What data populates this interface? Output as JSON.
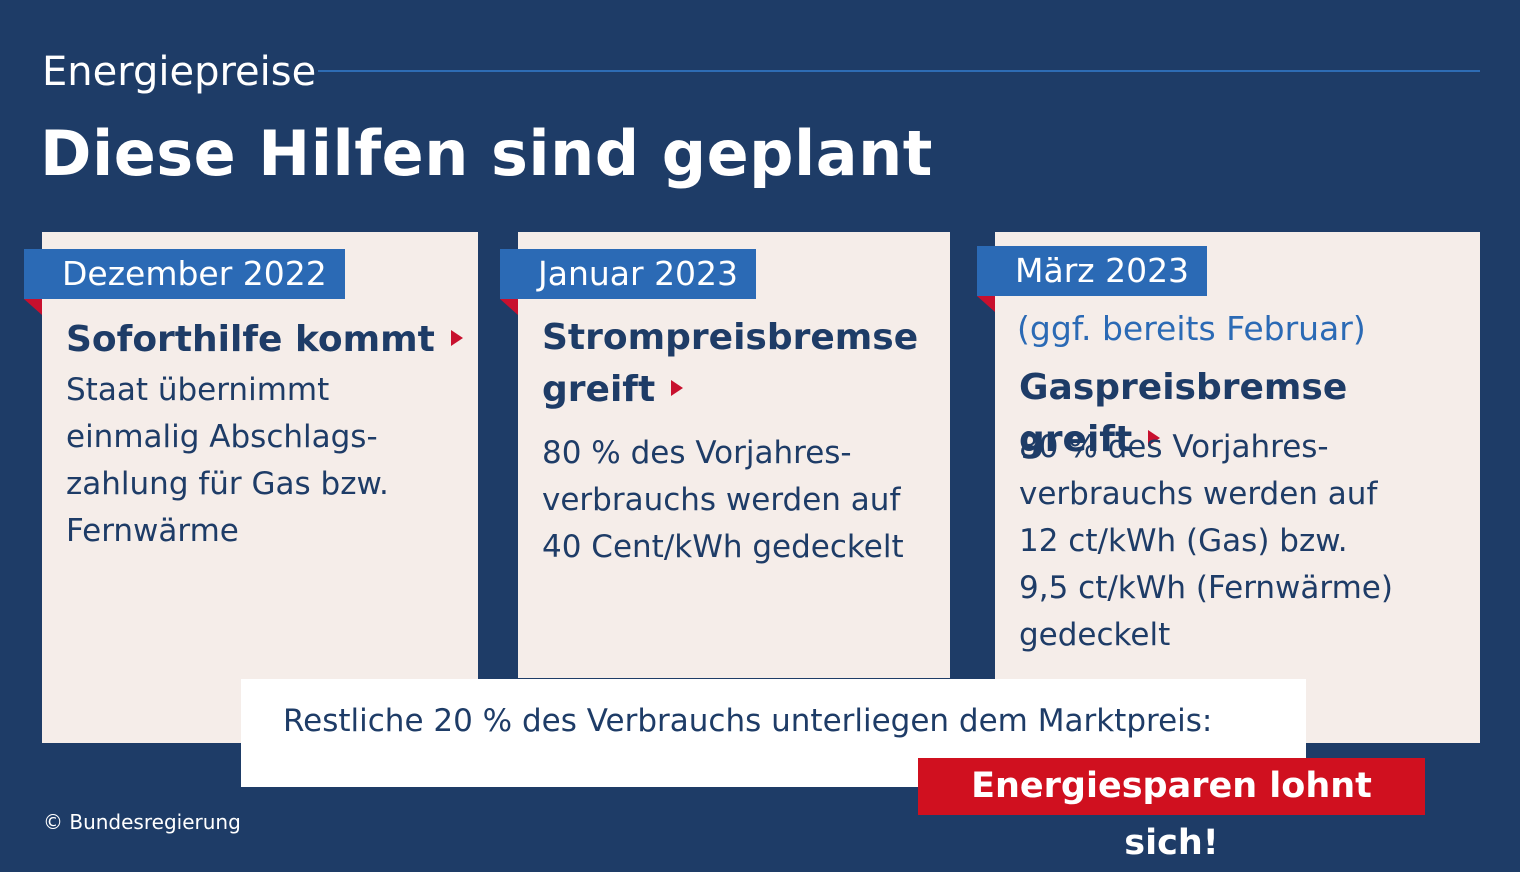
{
  "header": {
    "kicker": "Energiepreise",
    "headline": "Diese Hilfen sind geplant"
  },
  "cards": [
    {
      "date": "Dezember 2022",
      "title": "Soforthilfe kommt",
      "body": "Staat übernimmt\neinmalig Abschlags-\nzahlung für Gas bzw.\nFernwärme"
    },
    {
      "date": "Januar 2023",
      "title_line1": "Strompreisbremse",
      "title_line2": "greift",
      "body": "80 % des Vorjahres-\nverbrauchs werden auf\n40 Cent/kWh gedeckelt"
    },
    {
      "date": "März 2023",
      "note": "(ggf. bereits Februar)",
      "title": "Gaspreisbremse greift",
      "body": "80 % des Vorjahres-\nverbrauchs werden auf\n12 ct/kWh (Gas) bzw.\n9,5 ct/kWh (Fernwärme)\ngedeckelt"
    }
  ],
  "footer": {
    "text": "Restliche 20 % des Verbrauchs unterliegen dem Marktpreis:",
    "cta": "Energiesparen lohnt sich!"
  },
  "copyright": "© Bundesregierung",
  "colors": {
    "background": "#1e3c67",
    "card": "#f5ede9",
    "tag": "#2b6ab5",
    "accent_red": "#c8102e"
  },
  "icons": [
    "arrow-right-icon"
  ]
}
